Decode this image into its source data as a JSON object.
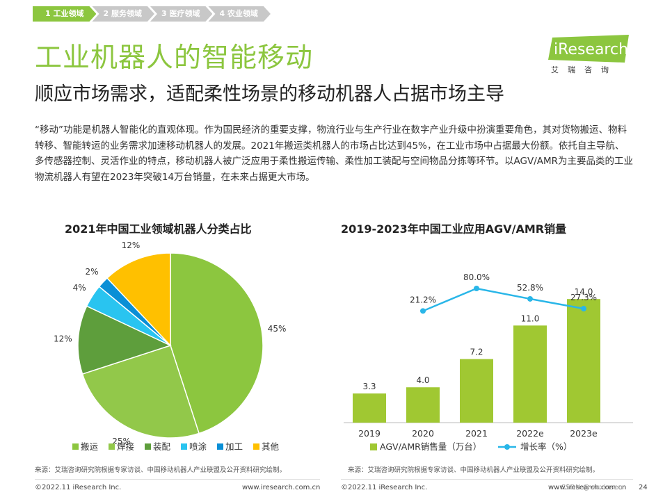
{
  "tabs": [
    "1 工业领域",
    "2 服务领域",
    "3 医疗领域",
    "4 农业领域"
  ],
  "title": "工业机器人的智能移动",
  "subtitle": "顺应市场需求，适配柔性场景的移动机器人占据市场主导",
  "logo": {
    "text": "iResearch",
    "cn": "艾瑞咨询"
  },
  "body_text": "“移动”功能是机器人智能化的直观体现。作为国民经济的重要支撑，物流行业与生产行业在数字产业升级中扮演重要角色，其对货物搬运、物料转移、智能转运的业务需求加速移动机器人的发展。2021年搬运类机器人的市场占比达到45%，在工业市场中占据最大份额。依托自主导航、多传感器控制、灵活作业的特点，移动机器人被广泛应用于柔性搬运传输、柔性加工装配与空间物品分拣等环节。以AGV/AMR为主要品类的工业物流机器人有望在2023年突破14万台销量，在未来占据更大市场。",
  "charts_meta": {
    "pie_title": "2021年中国工业领域机器人分类占比",
    "bar_title": "2019-2023年中国工业应用AGV/AMR销量"
  },
  "chart_data": [
    {
      "type": "pie",
      "title": "2021年中国工业领域机器人分类占比",
      "labels": [
        "搬运",
        "焊接",
        "装配",
        "喷涂",
        "加工",
        "其他"
      ],
      "values": [
        45,
        25,
        12,
        4,
        2,
        12
      ],
      "value_labels": [
        "45%",
        "25%",
        "12%",
        "4%",
        "2%",
        "12%"
      ],
      "colors": [
        "#8cc63f",
        "#92c84a",
        "#5e9e3c",
        "#29c4f0",
        "#0a8fd6",
        "#ffc000"
      ]
    },
    {
      "type": "bar",
      "title": "2019-2023年中国工业应用AGV/AMR销量",
      "categories": [
        "2019",
        "2020",
        "2021",
        "2022e",
        "2023e"
      ],
      "series": [
        {
          "name": "AGV/AMR销售量（万台）",
          "values": [
            3.3,
            4.0,
            7.2,
            11.0,
            14.0
          ],
          "value_labels": [
            "3.3",
            "4.0",
            "7.2",
            "11.0",
            "14.0"
          ],
          "color": "#a0c832"
        },
        {
          "name": "增长率（%）",
          "values": [
            null,
            21.2,
            80.0,
            52.8,
            27.3
          ],
          "value_labels": [
            "",
            "21.2%",
            "80.0%",
            "52.8%",
            "27.3%"
          ],
          "color": "#29b6e8"
        }
      ],
      "ylim": [
        0,
        16
      ]
    }
  ],
  "sources": {
    "left": "来源：艾瑞咨询研究院根据专家访谈、中国移动机器人产业联盟及公开资料研究绘制。",
    "right": "来源：艾瑞咨询研究院根据专家访谈、中国移动机器人产业联盟及公开资料研究绘制。"
  },
  "footer": {
    "left_copyright": "©2022.11 iResearch Inc.",
    "left_url": "www.iresearch.com.cn",
    "right_copyright": "©2022.11 iResearch Inc.",
    "right_url": "www.iresearch.com.cn",
    "watermark": "CSDN @wuxinsen",
    "page_number": "24"
  }
}
